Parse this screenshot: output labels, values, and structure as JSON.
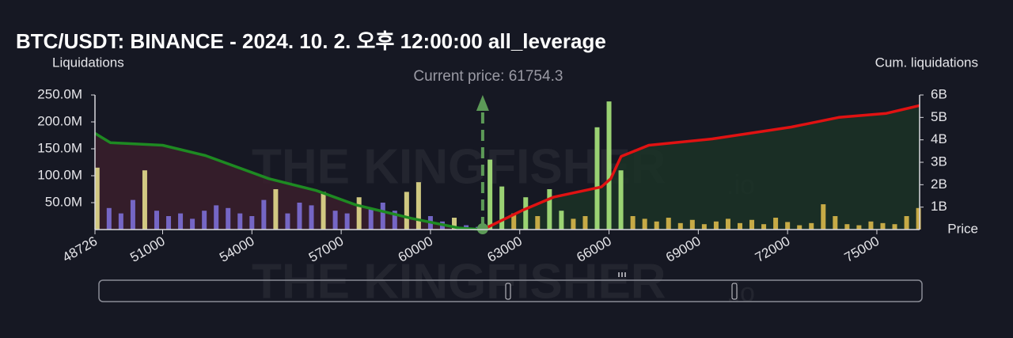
{
  "chart_data": {
    "type": "bar",
    "title": "BTC/USDT: BINANCE - 2024. 10. 2. 오후 12:00:00 all_leverage",
    "ylabel": "Liquidations",
    "y2label": "Cum. liquidations",
    "xlabel": "Price",
    "watermark": "THE KINGFISHER",
    "watermark_suffix": ".io",
    "current_price": {
      "value": 61754.3,
      "label": "Current price: 61754.3"
    },
    "current_price_color": "#5c9a57",
    "xlim": [
      48726,
      76437
    ],
    "xticks": [
      48726,
      51000,
      54000,
      57000,
      60000,
      63000,
      66000,
      69000,
      72000,
      75000
    ],
    "ylim": [
      0,
      250000000
    ],
    "yticks": [
      {
        "value": 50000000,
        "label": "50.0M"
      },
      {
        "value": 100000000,
        "label": "100.0M"
      },
      {
        "value": 150000000,
        "label": "150.0M"
      },
      {
        "value": 200000000,
        "label": "200.0M"
      },
      {
        "value": 250000000,
        "label": "250.0M"
      }
    ],
    "y2lim": [
      0,
      6000000000
    ],
    "y2ticks": [
      {
        "value": 1000000000,
        "label": "1B"
      },
      {
        "value": 2000000000,
        "label": "2B"
      },
      {
        "value": 3000000000,
        "label": "3B"
      },
      {
        "value": 4000000000,
        "label": "4B"
      },
      {
        "value": 5000000000,
        "label": "5B"
      },
      {
        "value": 6000000000,
        "label": "6B"
      }
    ],
    "x": [
      48800,
      49200,
      49600,
      50000,
      50400,
      50800,
      51200,
      51600,
      52000,
      52400,
      52800,
      53200,
      53600,
      54000,
      54400,
      54800,
      55200,
      55600,
      56000,
      56400,
      56800,
      57200,
      57600,
      58000,
      58400,
      58800,
      59200,
      59600,
      60000,
      60400,
      60800,
      61200,
      61600,
      62000,
      62400,
      62800,
      63200,
      63600,
      64000,
      64400,
      64800,
      65200,
      65600,
      66000,
      66400,
      66800,
      67200,
      67600,
      68000,
      68400,
      68800,
      69200,
      69600,
      70000,
      70400,
      70800,
      71200,
      71600,
      72000,
      72400,
      72800,
      73200,
      73600,
      74000,
      74400,
      74800,
      75200,
      75600,
      76000,
      76400
    ],
    "values": [
      115000000,
      40000000,
      30000000,
      55000000,
      110000000,
      35000000,
      25000000,
      30000000,
      20000000,
      35000000,
      45000000,
      40000000,
      30000000,
      25000000,
      55000000,
      75000000,
      30000000,
      50000000,
      45000000,
      70000000,
      35000000,
      30000000,
      60000000,
      40000000,
      50000000,
      35000000,
      70000000,
      88000000,
      25000000,
      15000000,
      22000000,
      8000000,
      5000000,
      130000000,
      80000000,
      30000000,
      60000000,
      25000000,
      75000000,
      35000000,
      20000000,
      25000000,
      190000000,
      238000000,
      110000000,
      25000000,
      20000000,
      15000000,
      22000000,
      12000000,
      18000000,
      10000000,
      15000000,
      20000000,
      12000000,
      18000000,
      10000000,
      22000000,
      14000000,
      8000000,
      12000000,
      47000000,
      25000000,
      10000000,
      8000000,
      15000000,
      12000000,
      10000000,
      25000000,
      40000000
    ],
    "colors": [
      "#e3dc8c",
      "#7c6fd6",
      "#7c6fd6",
      "#7c6fd6",
      "#e3dc8c",
      "#7c6fd6",
      "#7c6fd6",
      "#7c6fd6",
      "#7c6fd6",
      "#7c6fd6",
      "#7c6fd6",
      "#7c6fd6",
      "#7c6fd6",
      "#7c6fd6",
      "#7c6fd6",
      "#e3dc8c",
      "#7c6fd6",
      "#7c6fd6",
      "#7c6fd6",
      "#e3dc8c",
      "#7c6fd6",
      "#7c6fd6",
      "#e3dc8c",
      "#7c6fd6",
      "#7c6fd6",
      "#7c6fd6",
      "#e3dc8c",
      "#e3dc8c",
      "#7c6fd6",
      "#7c6fd6",
      "#e3dc8c",
      "#7c6fd6",
      "#7c6fd6",
      "#a8e67c",
      "#a8e67c",
      "#d9b84a",
      "#a8e67c",
      "#d9b84a",
      "#a8e67c",
      "#a8e67c",
      "#d9b84a",
      "#d9b84a",
      "#a8e67c",
      "#a8e67c",
      "#a8e67c",
      "#d9b84a",
      "#d9b84a",
      "#d9b84a",
      "#d9b84a",
      "#d9b84a",
      "#d9b84a",
      "#d9b84a",
      "#d9b84a",
      "#d9b84a",
      "#d9b84a",
      "#d9b84a",
      "#d9b84a",
      "#d9b84a",
      "#d9b84a",
      "#d9b84a",
      "#d9b84a",
      "#d9b84a",
      "#d9b84a",
      "#d9b84a",
      "#d9b84a",
      "#d9b84a",
      "#d9b84a",
      "#d9b84a",
      "#d9b84a",
      "#d9b84a"
    ],
    "series": [
      {
        "color": "#1e8a22",
        "fill": "#3a1f2b",
        "axis": "y2",
        "x": [
          48726,
          49244,
          51000,
          52437,
          54565,
          56162,
          57492,
          59355,
          60951,
          61750
        ],
        "values": [
          4290000000,
          3870000000,
          3760000000,
          3300000000,
          2270000000,
          1740000000,
          1100000000,
          500000000,
          70000000,
          0
        ]
      },
      {
        "color": "#e01212",
        "fill": "#1b3226",
        "axis": "y2",
        "x": [
          61760,
          63080,
          64144,
          65741,
          66060,
          66406,
          67337,
          69466,
          72127,
          73723,
          75320,
          76437
        ],
        "values": [
          0,
          850000000,
          1450000000,
          1900000000,
          2270000000,
          3260000000,
          3760000000,
          4040000000,
          4570000000,
          5000000000,
          5180000000,
          5530000000
        ]
      }
    ]
  }
}
